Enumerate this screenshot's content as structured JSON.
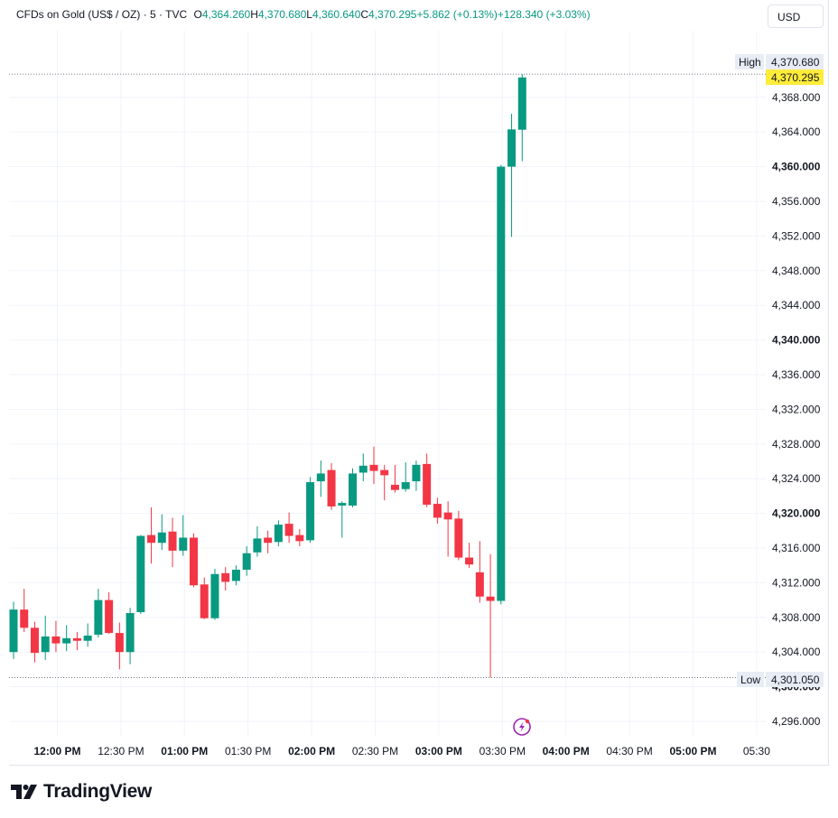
{
  "legend": {
    "symbol": "CFDs on Gold (US$ / OZ) · 5 · TVC",
    "o_label": "O",
    "open": "4,364.260",
    "h_label": "H",
    "high": "4,370.680",
    "l_label": "L",
    "low": "4,360.640",
    "c_label": "C",
    "close": "4,370.295",
    "change": "+5.862 (+0.13%)",
    "change_day": "+128.340 (+3.03%)"
  },
  "currency": "USD",
  "badges": {
    "high_label": "High",
    "high_value": "4,370.680",
    "last_value": "4,370.295",
    "low_label": "Low",
    "low_value": "4,301.050"
  },
  "colors": {
    "up": "#089981",
    "down": "#f23645",
    "last_price": "#ffeb3b"
  },
  "footer": {
    "brand": "TradingView"
  },
  "chart_data": {
    "type": "candlestick",
    "y_ticks": [
      {
        "v": 4296,
        "label": "4,296.000",
        "bold": false
      },
      {
        "v": 4300,
        "label": "4,300.000",
        "bold": true
      },
      {
        "v": 4304,
        "label": "4,304.000",
        "bold": false
      },
      {
        "v": 4308,
        "label": "4,308.000",
        "bold": false
      },
      {
        "v": 4312,
        "label": "4,312.000",
        "bold": false
      },
      {
        "v": 4316,
        "label": "4,316.000",
        "bold": false
      },
      {
        "v": 4320,
        "label": "4,320.000",
        "bold": true
      },
      {
        "v": 4324,
        "label": "4,324.000",
        "bold": false
      },
      {
        "v": 4328,
        "label": "4,328.000",
        "bold": false
      },
      {
        "v": 4332,
        "label": "4,332.000",
        "bold": false
      },
      {
        "v": 4336,
        "label": "4,336.000",
        "bold": false
      },
      {
        "v": 4340,
        "label": "4,340.000",
        "bold": true
      },
      {
        "v": 4344,
        "label": "4,344.000",
        "bold": false
      },
      {
        "v": 4348,
        "label": "4,348.000",
        "bold": false
      },
      {
        "v": 4352,
        "label": "4,352.000",
        "bold": false
      },
      {
        "v": 4356,
        "label": "4,356.000",
        "bold": false
      },
      {
        "v": 4360,
        "label": "4,360.000",
        "bold": true
      },
      {
        "v": 4364,
        "label": "4,364.000",
        "bold": false
      },
      {
        "v": 4368,
        "label": "4,368.000",
        "bold": false
      }
    ],
    "x_ticks": [
      {
        "label": "12:00 PM",
        "bold": true
      },
      {
        "label": "12:30 PM",
        "bold": false
      },
      {
        "label": "01:00 PM",
        "bold": true
      },
      {
        "label": "01:30 PM",
        "bold": false
      },
      {
        "label": "02:00 PM",
        "bold": true
      },
      {
        "label": "02:30 PM",
        "bold": false
      },
      {
        "label": "03:00 PM",
        "bold": true
      },
      {
        "label": "03:30 PM",
        "bold": false
      },
      {
        "label": "04:00 PM",
        "bold": true
      },
      {
        "label": "04:30 PM",
        "bold": false
      },
      {
        "label": "05:00 PM",
        "bold": true
      },
      {
        "label": "05:30",
        "bold": false
      }
    ],
    "high": 4370.68,
    "low": 4301.05,
    "last": 4370.295,
    "candles": [
      {
        "o": 4304.0,
        "h": 4309.8,
        "l": 4303.2,
        "c": 4308.9
      },
      {
        "o": 4308.9,
        "h": 4311.3,
        "l": 4306.3,
        "c": 4306.8
      },
      {
        "o": 4306.8,
        "h": 4307.5,
        "l": 4302.8,
        "c": 4303.9
      },
      {
        "o": 4304.0,
        "h": 4308.2,
        "l": 4303.1,
        "c": 4305.8
      },
      {
        "o": 4305.8,
        "h": 4307.6,
        "l": 4304.0,
        "c": 4305.0
      },
      {
        "o": 4305.0,
        "h": 4307.1,
        "l": 4304.1,
        "c": 4305.6
      },
      {
        "o": 4305.6,
        "h": 4306.3,
        "l": 4304.2,
        "c": 4305.3
      },
      {
        "o": 4305.3,
        "h": 4307.3,
        "l": 4304.6,
        "c": 4305.9
      },
      {
        "o": 4306.0,
        "h": 4311.3,
        "l": 4305.7,
        "c": 4310.0
      },
      {
        "o": 4310.0,
        "h": 4310.9,
        "l": 4306.1,
        "c": 4306.2
      },
      {
        "o": 4306.2,
        "h": 4307.4,
        "l": 4302.0,
        "c": 4304.0
      },
      {
        "o": 4304.0,
        "h": 4309.1,
        "l": 4302.6,
        "c": 4308.5
      },
      {
        "o": 4308.6,
        "h": 4317.5,
        "l": 4308.4,
        "c": 4317.4
      },
      {
        "o": 4317.5,
        "h": 4320.7,
        "l": 4314.2,
        "c": 4316.6
      },
      {
        "o": 4316.6,
        "h": 4319.9,
        "l": 4315.8,
        "c": 4317.8
      },
      {
        "o": 4317.9,
        "h": 4319.5,
        "l": 4313.8,
        "c": 4315.7
      },
      {
        "o": 4315.7,
        "h": 4319.8,
        "l": 4315.1,
        "c": 4317.2
      },
      {
        "o": 4317.2,
        "h": 4317.7,
        "l": 4311.5,
        "c": 4311.7
      },
      {
        "o": 4311.8,
        "h": 4312.6,
        "l": 4307.8,
        "c": 4307.9
      },
      {
        "o": 4307.9,
        "h": 4313.6,
        "l": 4307.7,
        "c": 4313.0
      },
      {
        "o": 4313.1,
        "h": 4313.8,
        "l": 4311.1,
        "c": 4312.1
      },
      {
        "o": 4312.2,
        "h": 4314.0,
        "l": 4311.7,
        "c": 4313.5
      },
      {
        "o": 4313.5,
        "h": 4316.2,
        "l": 4312.8,
        "c": 4315.4
      },
      {
        "o": 4315.5,
        "h": 4318.5,
        "l": 4315.0,
        "c": 4317.1
      },
      {
        "o": 4317.2,
        "h": 4318.0,
        "l": 4315.4,
        "c": 4316.6
      },
      {
        "o": 4316.7,
        "h": 4319.2,
        "l": 4316.2,
        "c": 4318.7
      },
      {
        "o": 4318.8,
        "h": 4320.1,
        "l": 4316.6,
        "c": 4317.4
      },
      {
        "o": 4317.5,
        "h": 4318.2,
        "l": 4316.2,
        "c": 4316.8
      },
      {
        "o": 4316.9,
        "h": 4324.2,
        "l": 4316.6,
        "c": 4323.6
      },
      {
        "o": 4323.7,
        "h": 4326.1,
        "l": 4321.9,
        "c": 4324.6
      },
      {
        "o": 4325.0,
        "h": 4325.8,
        "l": 4320.4,
        "c": 4320.8
      },
      {
        "o": 4320.9,
        "h": 4321.4,
        "l": 4317.2,
        "c": 4321.2
      },
      {
        "o": 4320.9,
        "h": 4325.2,
        "l": 4320.7,
        "c": 4324.6
      },
      {
        "o": 4324.7,
        "h": 4326.9,
        "l": 4323.7,
        "c": 4325.5
      },
      {
        "o": 4325.6,
        "h": 4327.7,
        "l": 4323.4,
        "c": 4324.9
      },
      {
        "o": 4325.0,
        "h": 4325.6,
        "l": 4321.5,
        "c": 4324.4
      },
      {
        "o": 4323.3,
        "h": 4325.6,
        "l": 4322.4,
        "c": 4322.7
      },
      {
        "o": 4322.8,
        "h": 4325.9,
        "l": 4322.5,
        "c": 4323.6
      },
      {
        "o": 4323.7,
        "h": 4326.1,
        "l": 4322.6,
        "c": 4325.6
      },
      {
        "o": 4325.7,
        "h": 4326.9,
        "l": 4320.7,
        "c": 4321.0
      },
      {
        "o": 4321.1,
        "h": 4321.8,
        "l": 4318.8,
        "c": 4319.5
      },
      {
        "o": 4320.1,
        "h": 4321.4,
        "l": 4315.0,
        "c": 4319.3
      },
      {
        "o": 4319.4,
        "h": 4320.3,
        "l": 4314.6,
        "c": 4314.9
      },
      {
        "o": 4314.9,
        "h": 4316.6,
        "l": 4313.7,
        "c": 4314.1
      },
      {
        "o": 4313.2,
        "h": 4316.8,
        "l": 4309.7,
        "c": 4310.4
      },
      {
        "o": 4310.4,
        "h": 4315.3,
        "l": 4301.05,
        "c": 4309.9
      },
      {
        "o": 4309.9,
        "h": 4360.2,
        "l": 4309.5,
        "c": 4360.0
      },
      {
        "o": 4360.0,
        "h": 4366.1,
        "l": 4351.9,
        "c": 4364.3
      },
      {
        "o": 4364.26,
        "h": 4370.68,
        "l": 4360.64,
        "c": 4370.295
      }
    ]
  }
}
